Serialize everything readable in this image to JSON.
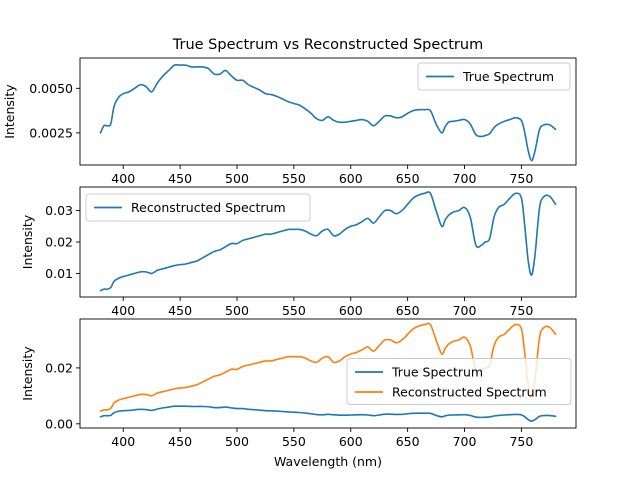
{
  "chart_data": [
    {
      "type": "line",
      "title": "True Spectrum vs Reconstructed Spectrum",
      "xlabel": "",
      "ylabel": "Intensity",
      "xlim": [
        362,
        798
      ],
      "ylim": [
        0.0007,
        0.0067
      ],
      "xticks": [
        400,
        450,
        500,
        550,
        600,
        650,
        700,
        750
      ],
      "yticks": [
        0.0025,
        0.005
      ],
      "ytick_labels": [
        "0.0025",
        "0.0050"
      ],
      "legend_position": "upper right",
      "grid": false,
      "series": [
        {
          "name": "True Spectrum",
          "color": "#1f77b4",
          "x": [
            380,
            383,
            386,
            389,
            392,
            396,
            400,
            405,
            410,
            415,
            420,
            425,
            430,
            435,
            440,
            445,
            450,
            455,
            460,
            465,
            470,
            475,
            480,
            485,
            490,
            495,
            500,
            505,
            510,
            515,
            520,
            525,
            530,
            535,
            540,
            545,
            550,
            555,
            560,
            565,
            570,
            575,
            580,
            585,
            590,
            595,
            600,
            605,
            610,
            615,
            620,
            625,
            630,
            635,
            640,
            645,
            650,
            655,
            660,
            665,
            670,
            675,
            680,
            683,
            686,
            690,
            695,
            700,
            705,
            710,
            715,
            718,
            722,
            726,
            730,
            735,
            740,
            745,
            750,
            753,
            756,
            759,
            762,
            766,
            770,
            775,
            780
          ],
          "values": [
            0.0025,
            0.0029,
            0.0029,
            0.003,
            0.004,
            0.0045,
            0.0047,
            0.0048,
            0.005,
            0.0052,
            0.0051,
            0.0048,
            0.0053,
            0.0057,
            0.006,
            0.0063,
            0.0063,
            0.0063,
            0.0062,
            0.0062,
            0.0062,
            0.0061,
            0.0058,
            0.0058,
            0.006,
            0.0057,
            0.00545,
            0.00545,
            0.0052,
            0.00505,
            0.0049,
            0.0047,
            0.00465,
            0.00455,
            0.0044,
            0.00425,
            0.00415,
            0.00405,
            0.00385,
            0.0036,
            0.0033,
            0.0032,
            0.0034,
            0.0032,
            0.0031,
            0.0031,
            0.00315,
            0.0032,
            0.00325,
            0.00315,
            0.0029,
            0.00315,
            0.00345,
            0.00345,
            0.00335,
            0.0034,
            0.0036,
            0.00375,
            0.0038,
            0.0038,
            0.00375,
            0.003,
            0.0025,
            0.00285,
            0.0031,
            0.00315,
            0.0032,
            0.00325,
            0.003,
            0.0024,
            0.0023,
            0.00235,
            0.00245,
            0.0028,
            0.003,
            0.00315,
            0.00325,
            0.00335,
            0.0032,
            0.0025,
            0.0015,
            0.00095,
            0.0015,
            0.0027,
            0.00295,
            0.00295,
            0.0027
          ]
        }
      ]
    },
    {
      "type": "line",
      "title": "",
      "xlabel": "",
      "ylabel": "Intensity",
      "xlim": [
        362,
        798
      ],
      "ylim": [
        0.0025,
        0.0375
      ],
      "xticks": [
        400,
        450,
        500,
        550,
        600,
        650,
        700,
        750
      ],
      "yticks": [
        0.01,
        0.02,
        0.03
      ],
      "ytick_labels": [
        "0.01",
        "0.02",
        "0.03"
      ],
      "legend_position": "upper left",
      "grid": false,
      "series": [
        {
          "name": "Reconstructed Spectrum",
          "color": "#1f77b4",
          "x": [
            380,
            383,
            386,
            389,
            392,
            396,
            400,
            405,
            410,
            415,
            420,
            425,
            430,
            435,
            440,
            445,
            450,
            455,
            460,
            465,
            470,
            475,
            480,
            485,
            490,
            495,
            500,
            505,
            510,
            515,
            520,
            525,
            530,
            535,
            540,
            545,
            550,
            555,
            560,
            565,
            570,
            575,
            580,
            585,
            590,
            595,
            600,
            605,
            610,
            615,
            620,
            625,
            630,
            635,
            640,
            645,
            650,
            655,
            660,
            665,
            670,
            675,
            680,
            683,
            686,
            690,
            695,
            700,
            705,
            710,
            715,
            718,
            722,
            726,
            730,
            735,
            740,
            745,
            750,
            753,
            756,
            759,
            762,
            766,
            770,
            775,
            780
          ],
          "values": [
            0.0045,
            0.005,
            0.005,
            0.0055,
            0.0075,
            0.0085,
            0.009,
            0.0095,
            0.01,
            0.0105,
            0.0105,
            0.01,
            0.011,
            0.0115,
            0.012,
            0.0125,
            0.0128,
            0.013,
            0.0135,
            0.014,
            0.015,
            0.016,
            0.017,
            0.0175,
            0.0185,
            0.0195,
            0.0195,
            0.0205,
            0.021,
            0.0215,
            0.022,
            0.0225,
            0.0225,
            0.023,
            0.0235,
            0.024,
            0.024,
            0.024,
            0.0235,
            0.0225,
            0.022,
            0.0235,
            0.024,
            0.022,
            0.0225,
            0.024,
            0.025,
            0.0255,
            0.0265,
            0.0275,
            0.026,
            0.028,
            0.03,
            0.03,
            0.029,
            0.03,
            0.032,
            0.034,
            0.035,
            0.0355,
            0.0355,
            0.03,
            0.025,
            0.027,
            0.0285,
            0.0295,
            0.03,
            0.031,
            0.028,
            0.019,
            0.019,
            0.02,
            0.021,
            0.028,
            0.031,
            0.032,
            0.034,
            0.0355,
            0.034,
            0.025,
            0.014,
            0.0095,
            0.016,
            0.031,
            0.0345,
            0.0345,
            0.032
          ]
        }
      ]
    },
    {
      "type": "line",
      "title": "",
      "xlabel": "Wavelength (nm)",
      "ylabel": "Intensity",
      "xlim": [
        362,
        798
      ],
      "ylim": [
        -0.0015,
        0.0375
      ],
      "xticks": [
        400,
        450,
        500,
        550,
        600,
        650,
        700,
        750
      ],
      "yticks": [
        0.0,
        0.02
      ],
      "ytick_labels": [
        "0.00",
        "0.02"
      ],
      "legend_position": "center right",
      "grid": false,
      "series": [
        {
          "name": "True Spectrum",
          "color": "#1f77b4",
          "x": [
            380,
            383,
            386,
            389,
            392,
            396,
            400,
            405,
            410,
            415,
            420,
            425,
            430,
            435,
            440,
            445,
            450,
            455,
            460,
            465,
            470,
            475,
            480,
            485,
            490,
            495,
            500,
            505,
            510,
            515,
            520,
            525,
            530,
            535,
            540,
            545,
            550,
            555,
            560,
            565,
            570,
            575,
            580,
            585,
            590,
            595,
            600,
            605,
            610,
            615,
            620,
            625,
            630,
            635,
            640,
            645,
            650,
            655,
            660,
            665,
            670,
            675,
            680,
            683,
            686,
            690,
            695,
            700,
            705,
            710,
            715,
            718,
            722,
            726,
            730,
            735,
            740,
            745,
            750,
            753,
            756,
            759,
            762,
            766,
            770,
            775,
            780
          ],
          "values": [
            0.0025,
            0.0029,
            0.0029,
            0.003,
            0.004,
            0.0045,
            0.0047,
            0.0048,
            0.005,
            0.0052,
            0.0051,
            0.0048,
            0.0053,
            0.0057,
            0.006,
            0.0063,
            0.0063,
            0.0063,
            0.0062,
            0.0062,
            0.0062,
            0.0061,
            0.0058,
            0.0058,
            0.006,
            0.0057,
            0.00545,
            0.00545,
            0.0052,
            0.00505,
            0.0049,
            0.0047,
            0.00465,
            0.00455,
            0.0044,
            0.00425,
            0.00415,
            0.00405,
            0.00385,
            0.0036,
            0.0033,
            0.0032,
            0.0034,
            0.0032,
            0.0031,
            0.0031,
            0.00315,
            0.0032,
            0.00325,
            0.00315,
            0.0029,
            0.00315,
            0.00345,
            0.00345,
            0.00335,
            0.0034,
            0.0036,
            0.00375,
            0.0038,
            0.0038,
            0.00375,
            0.003,
            0.0025,
            0.00285,
            0.0031,
            0.00315,
            0.0032,
            0.00325,
            0.003,
            0.0024,
            0.0023,
            0.00235,
            0.00245,
            0.0028,
            0.003,
            0.00315,
            0.00325,
            0.00335,
            0.0032,
            0.0025,
            0.0015,
            0.00095,
            0.0015,
            0.0027,
            0.00295,
            0.00295,
            0.0027
          ]
        },
        {
          "name": "Reconstructed Spectrum",
          "color": "#ff7f0e",
          "x": [
            380,
            383,
            386,
            389,
            392,
            396,
            400,
            405,
            410,
            415,
            420,
            425,
            430,
            435,
            440,
            445,
            450,
            455,
            460,
            465,
            470,
            475,
            480,
            485,
            490,
            495,
            500,
            505,
            510,
            515,
            520,
            525,
            530,
            535,
            540,
            545,
            550,
            555,
            560,
            565,
            570,
            575,
            580,
            585,
            590,
            595,
            600,
            605,
            610,
            615,
            620,
            625,
            630,
            635,
            640,
            645,
            650,
            655,
            660,
            665,
            670,
            675,
            680,
            683,
            686,
            690,
            695,
            700,
            705,
            710,
            715,
            718,
            722,
            726,
            730,
            735,
            740,
            745,
            750,
            753,
            756,
            759,
            762,
            766,
            770,
            775,
            780
          ],
          "values": [
            0.0045,
            0.005,
            0.005,
            0.0055,
            0.0075,
            0.0085,
            0.009,
            0.0095,
            0.01,
            0.0105,
            0.0105,
            0.01,
            0.011,
            0.0115,
            0.012,
            0.0125,
            0.0128,
            0.013,
            0.0135,
            0.014,
            0.015,
            0.016,
            0.017,
            0.0175,
            0.0185,
            0.0195,
            0.0195,
            0.0205,
            0.021,
            0.0215,
            0.022,
            0.0225,
            0.0225,
            0.023,
            0.0235,
            0.024,
            0.024,
            0.024,
            0.0235,
            0.0225,
            0.022,
            0.0235,
            0.024,
            0.022,
            0.0225,
            0.024,
            0.025,
            0.0255,
            0.0265,
            0.0275,
            0.026,
            0.028,
            0.03,
            0.03,
            0.029,
            0.03,
            0.032,
            0.034,
            0.035,
            0.0355,
            0.0355,
            0.03,
            0.025,
            0.027,
            0.0285,
            0.0295,
            0.03,
            0.031,
            0.028,
            0.019,
            0.019,
            0.02,
            0.021,
            0.028,
            0.031,
            0.032,
            0.034,
            0.0355,
            0.034,
            0.025,
            0.014,
            0.0095,
            0.016,
            0.031,
            0.0345,
            0.0345,
            0.032
          ]
        }
      ]
    }
  ]
}
